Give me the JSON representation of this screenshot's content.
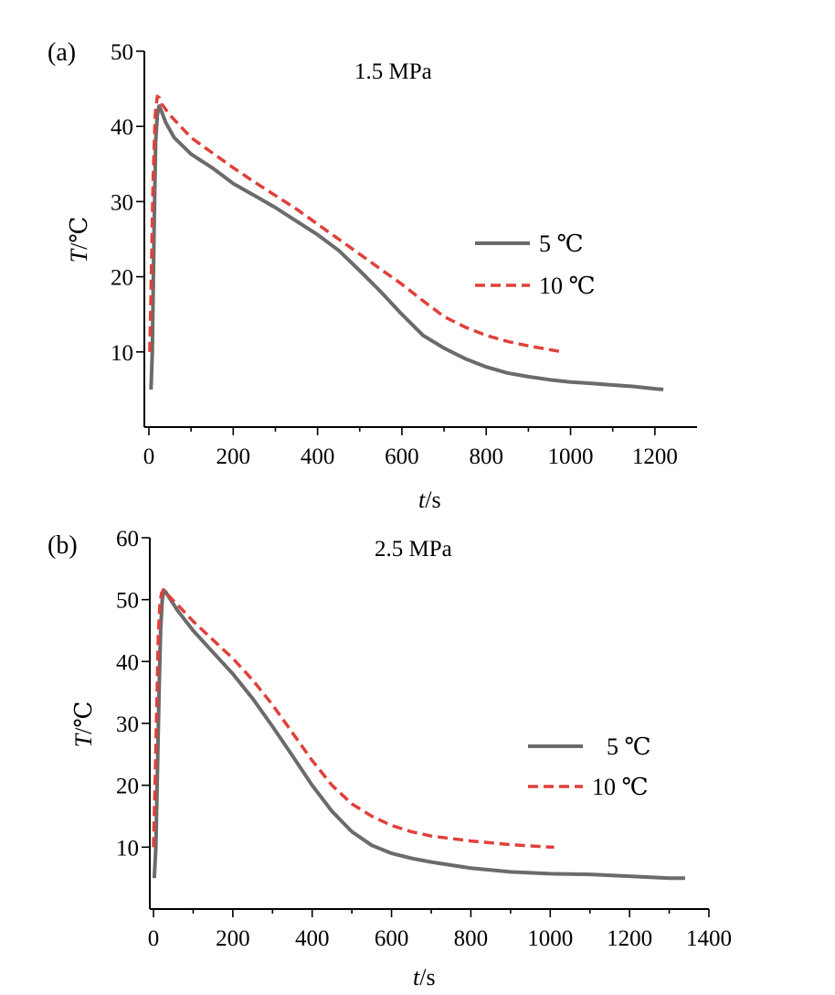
{
  "chart_data": [
    {
      "type": "line",
      "panel_label": "(a)",
      "title": "1.5 MPa",
      "xlabel_var": "t",
      "xlabel_unit": "/s",
      "ylabel_var": "T",
      "ylabel_unit": "/℃",
      "xlim": [
        0,
        1300
      ],
      "ylim": [
        0,
        50
      ],
      "xticks": [
        0,
        200,
        400,
        600,
        800,
        1000,
        1200
      ],
      "yticks": [
        10,
        20,
        30,
        40,
        50
      ],
      "legend_position": "right",
      "series": [
        {
          "name": "5 ℃",
          "color": "#6b6b6b",
          "dash": "solid",
          "x": [
            5,
            8,
            12,
            16,
            20,
            24,
            30,
            40,
            60,
            100,
            150,
            200,
            250,
            300,
            350,
            400,
            450,
            500,
            550,
            600,
            650,
            700,
            750,
            800,
            850,
            900,
            950,
            1000,
            1050,
            1100,
            1150,
            1200,
            1220
          ],
          "y": [
            5,
            10,
            25,
            38,
            41.5,
            42.7,
            42,
            40.5,
            38.5,
            36.3,
            34.5,
            32.4,
            30.8,
            29.2,
            27.4,
            25.6,
            23.5,
            20.8,
            18.0,
            15.0,
            12.2,
            10.5,
            9.1,
            8.0,
            7.2,
            6.7,
            6.3,
            6.0,
            5.8,
            5.6,
            5.4,
            5.1,
            5.0
          ]
        },
        {
          "name": "10 ℃",
          "color": "#e0403a",
          "dash": "dashed",
          "x": [
            2,
            5,
            10,
            15,
            20,
            25,
            30,
            50,
            100,
            150,
            200,
            250,
            300,
            350,
            400,
            450,
            500,
            550,
            600,
            650,
            700,
            750,
            800,
            850,
            900,
            950,
            980
          ],
          "y": [
            10,
            18,
            33,
            41.5,
            44,
            43.8,
            43,
            41.5,
            38.5,
            36.5,
            34.5,
            32.6,
            30.8,
            29.0,
            27.0,
            25.0,
            23.0,
            21.0,
            19.0,
            16.8,
            14.7,
            13.3,
            12.2,
            11.4,
            10.8,
            10.3,
            10.0
          ]
        }
      ]
    },
    {
      "type": "line",
      "panel_label": "(b)",
      "title": "2.5 MPa",
      "xlabel_var": "t",
      "xlabel_unit": "/s",
      "ylabel_var": "T",
      "ylabel_unit": "/℃",
      "xlim": [
        0,
        1400
      ],
      "ylim": [
        0,
        60
      ],
      "xticks": [
        0,
        200,
        400,
        600,
        800,
        1000,
        1200,
        1400
      ],
      "yticks": [
        10,
        20,
        30,
        40,
        50,
        60
      ],
      "legend_position": "right",
      "series": [
        {
          "name": "5 ℃",
          "color": "#6b6b6b",
          "dash": "solid",
          "x": [
            2,
            6,
            10,
            14,
            18,
            22,
            26,
            30,
            40,
            60,
            100,
            150,
            200,
            250,
            300,
            350,
            400,
            450,
            500,
            550,
            600,
            650,
            700,
            800,
            900,
            1000,
            1100,
            1200,
            1300,
            1340
          ],
          "y": [
            5,
            10,
            22,
            35,
            45,
            50,
            51.5,
            51.3,
            50.3,
            48.3,
            45.0,
            41.5,
            38.0,
            34.0,
            29.5,
            24.8,
            20.0,
            15.8,
            12.5,
            10.3,
            9.0,
            8.2,
            7.6,
            6.6,
            6.0,
            5.7,
            5.6,
            5.3,
            5.0,
            5.0
          ]
        },
        {
          "name": "10 ℃",
          "color": "#e0403a",
          "dash": "dashed",
          "x": [
            0,
            4,
            8,
            12,
            16,
            20,
            25,
            30,
            40,
            60,
            100,
            150,
            200,
            250,
            300,
            350,
            400,
            450,
            500,
            550,
            600,
            650,
            700,
            800,
            900,
            1000,
            1010
          ],
          "y": [
            10,
            20,
            32,
            44,
            49,
            51,
            51.6,
            51.2,
            50.5,
            49.2,
            46.5,
            43.5,
            40.5,
            37.0,
            33.0,
            28.5,
            24.0,
            20.0,
            17.0,
            15.0,
            13.5,
            12.5,
            11.8,
            11.0,
            10.4,
            10.0,
            10.0
          ]
        }
      ]
    }
  ]
}
